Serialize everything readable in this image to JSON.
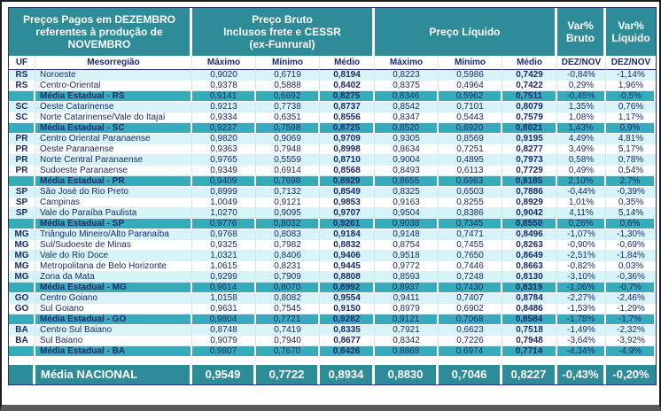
{
  "colors": {
    "header_teal": "#2E8B98",
    "state_avg_teal": "#35ACB9",
    "row_pale": "#D8F4F8",
    "text_navy": "#1B2A6B",
    "national_text": "#FFFFFF"
  },
  "table": {
    "title_lines": [
      "Preços Pagos em DEZEMBRO",
      "referentes à produção de",
      "NOVEMBRO"
    ],
    "bruto_header_lines": [
      "Preço Bruto",
      "Inclusos frete e CESSR",
      "(ex-Funrural)"
    ],
    "liquido_header": "Preço Líquido",
    "var_bruto_lines": [
      "Var%",
      "Bruto"
    ],
    "var_liquido_lines": [
      "Var%",
      "Líquido"
    ],
    "column_headers": [
      "UF",
      "Mesorregião",
      "Máximo",
      "Mínimo",
      "Médio",
      "Máximo",
      "Mínimo",
      "Médio",
      "DEZ/NOV",
      "DEZ/NOV"
    ],
    "rows": [
      {
        "kind": "region",
        "uf": "RS",
        "name": "Noroeste",
        "values": [
          "0,9020",
          "0,6719",
          "0,8194",
          "0,8223",
          "0,5986",
          "0,7429",
          "-0,84%",
          "-1,14%"
        ]
      },
      {
        "kind": "region",
        "uf": "RS",
        "name": "Centro-Oriental",
        "values": [
          "0,9378",
          "0,5888",
          "0,8402",
          "0,8375",
          "0,4964",
          "0,7422",
          "0,29%",
          "1,96%"
        ]
      },
      {
        "kind": "state",
        "uf": "",
        "name": "Média Estadual - RS",
        "values": [
          "0,9141",
          "0,6692",
          "0,8275",
          "0,8346",
          "0,5962",
          "0,7511",
          "-0,45%",
          "-0,5%"
        ]
      },
      {
        "kind": "region",
        "uf": "SC",
        "name": "Oeste Catarinense",
        "values": [
          "0,9213",
          "0,7738",
          "0,8737",
          "0,8542",
          "0,7101",
          "0,8079",
          "1,35%",
          "0,76%"
        ]
      },
      {
        "kind": "region",
        "uf": "SC",
        "name": "Norte Catarinense/Vale do Itajaí",
        "values": [
          "0,9334",
          "0,6351",
          "0,8556",
          "0,8347",
          "0,5443",
          "0,7579",
          "1,08%",
          "1,17%"
        ]
      },
      {
        "kind": "state",
        "uf": "",
        "name": "Média Estadual - SC",
        "values": [
          "0,9237",
          "0,7598",
          "0,8725",
          "0,8520",
          "0,6920",
          "0,8021",
          "1,43%",
          "0,9%"
        ]
      },
      {
        "kind": "region",
        "uf": "PR",
        "name": "Centro Oriental Paranaense",
        "values": [
          "0,9820",
          "0,9069",
          "0,9709",
          "0,9305",
          "0,8569",
          "0,9195",
          "4,49%",
          "4,81%"
        ]
      },
      {
        "kind": "region",
        "uf": "PR",
        "name": "Oeste Paranaense",
        "values": [
          "0,9363",
          "0,7948",
          "0,8998",
          "0,8634",
          "0,7251",
          "0,8277",
          "3,49%",
          "5,17%"
        ]
      },
      {
        "kind": "region",
        "uf": "PR",
        "name": "Norte Central Paranaense",
        "values": [
          "0,9765",
          "0,5559",
          "0,8710",
          "0,9004",
          "0,4895",
          "0,7973",
          "0,58%",
          "0,78%"
        ]
      },
      {
        "kind": "region",
        "uf": "PR",
        "name": "Sudoeste Paranaense",
        "values": [
          "0,9349",
          "0,6914",
          "0,8568",
          "0,8493",
          "0,6113",
          "0,7729",
          "0,49%",
          "0,54%"
        ]
      },
      {
        "kind": "state",
        "uf": "",
        "name": "Média Estadual - PR",
        "values": [
          "0,9409",
          "0,7698",
          "0,8929",
          "0,8655",
          "0,6983",
          "0,8185",
          "2,10%",
          "2,7%"
        ]
      },
      {
        "kind": "region",
        "uf": "SP",
        "name": "São José do Rio Preto",
        "values": [
          "0,8999",
          "0,7132",
          "0,8549",
          "0,8325",
          "0,6503",
          "0,7886",
          "-0,44%",
          "-0,39%"
        ]
      },
      {
        "kind": "region",
        "uf": "SP",
        "name": "Campinas",
        "values": [
          "1,0049",
          "0,9121",
          "0,9853",
          "0,9163",
          "0,8255",
          "0,8929",
          "1,01%",
          "0,35%"
        ]
      },
      {
        "kind": "region",
        "uf": "SP",
        "name": "Vale do Paraíba Paulista",
        "values": [
          "1,0270",
          "0,9095",
          "0,9707",
          "0,9504",
          "0,8386",
          "0,9042",
          "4,11%",
          "5,14%"
        ]
      },
      {
        "kind": "state",
        "uf": "",
        "name": "Média Estadual - SP",
        "values": [
          "0,9776",
          "0,8032",
          "0,9261",
          "0,9038",
          "0,7345",
          "0,8550",
          "0,26%",
          "0,6%"
        ]
      },
      {
        "kind": "region",
        "uf": "MG",
        "name": "Triângulo Mineiro/Alto Paranaíba",
        "values": [
          "0,9768",
          "0,8083",
          "0,9184",
          "0,9148",
          "0,7471",
          "0,8496",
          "-1,07%",
          "-1,30%"
        ]
      },
      {
        "kind": "region",
        "uf": "MG",
        "name": "Sul/Sudoeste de Minas",
        "values": [
          "0,9325",
          "0,7982",
          "0,8832",
          "0,8754",
          "0,7455",
          "0,8263",
          "-0,90%",
          "-0,69%"
        ]
      },
      {
        "kind": "region",
        "uf": "MG",
        "name": "Vale do Rio Doce",
        "values": [
          "1,0321",
          "0,8406",
          "0,9406",
          "0,9518",
          "0,7650",
          "0,8649",
          "-2,51%",
          "-1,84%"
        ]
      },
      {
        "kind": "region",
        "uf": "MG",
        "name": "Metropolitana de Belo Horizonte",
        "values": [
          "1,0615",
          "0,8231",
          "0,9445",
          "0,9772",
          "0,7446",
          "0,8663",
          "-0,82%",
          "0,03%"
        ]
      },
      {
        "kind": "region",
        "uf": "MG",
        "name": "Zona da Mata",
        "values": [
          "0,9299",
          "0,7909",
          "0,8808",
          "0,8593",
          "0,7248",
          "0,8130",
          "-3,10%",
          "-0,36%"
        ]
      },
      {
        "kind": "state",
        "uf": "",
        "name": "Média Estadual - MG",
        "values": [
          "0,9614",
          "0,8070",
          "0,8992",
          "0,8937",
          "0,7430",
          "0,8319",
          "-1,06%",
          "-0,7%"
        ]
      },
      {
        "kind": "region",
        "uf": "GO",
        "name": "Centro Goiano",
        "values": [
          "1,0158",
          "0,8082",
          "0,9554",
          "0,9411",
          "0,7407",
          "0,8784",
          "-2,27%",
          "-2,46%"
        ]
      },
      {
        "kind": "region",
        "uf": "GO",
        "name": "Sul Goiano",
        "values": [
          "0,9631",
          "0,7545",
          "0,9150",
          "0,8979",
          "0,6902",
          "0,8486",
          "-1,53%",
          "-1,29%"
        ]
      },
      {
        "kind": "state",
        "uf": "",
        "name": "Média Estadual - GO",
        "values": [
          "0,9804",
          "0,7721",
          "0,9282",
          "0,9121",
          "0,7068",
          "0,8584",
          "-1,78%",
          "-1,7%"
        ]
      },
      {
        "kind": "region",
        "uf": "BA",
        "name": "Centro Sul Baiano",
        "values": [
          "0,8748",
          "0,7419",
          "0,8335",
          "0,7921",
          "0,6623",
          "0,7518",
          "-1,49%",
          "-2,32%"
        ]
      },
      {
        "kind": "region",
        "uf": "BA",
        "name": "Sul Baiano",
        "values": [
          "0,9079",
          "0,7940",
          "0,8677",
          "0,8342",
          "0,7226",
          "0,7948",
          "-3,64%",
          "-3,92%"
        ]
      },
      {
        "kind": "state",
        "uf": "",
        "name": "Média Estadual - BA",
        "values": [
          "0,9807",
          "0,7670",
          "0,8426",
          "0,8868",
          "0,6974",
          "0,7714",
          "-4,34%",
          "-4,9%"
        ]
      }
    ],
    "national": {
      "label": "Média NACIONAL",
      "values": [
        "0,9549",
        "0,7722",
        "0,8934",
        "0,8830",
        "0,7046",
        "0,8227",
        "-0,43%",
        "-0,20%"
      ]
    }
  }
}
